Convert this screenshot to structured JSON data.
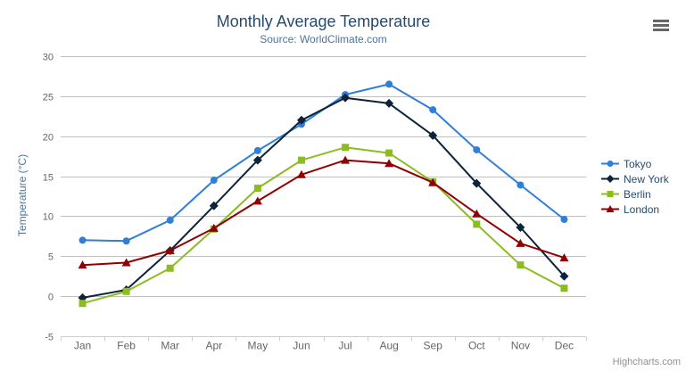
{
  "chart": {
    "credits_label": "Highcharts.com",
    "context_menu_icon": "hamburger-icon"
  },
  "chart_data": {
    "type": "line",
    "title": "Monthly Average Temperature",
    "subtitle": "Source: WorldClimate.com",
    "xlabel": "",
    "ylabel": "Temperature (°C)",
    "ylim": [
      -5,
      30
    ],
    "yticks": [
      30,
      25,
      20,
      15,
      10,
      5,
      0,
      -5
    ],
    "grid": "horizontal",
    "legend_position": "right",
    "background_color": "#ffffff",
    "gridline_color": "#c0c0c0",
    "axis_line_color": "#c0d0e0",
    "categories": [
      "Jan",
      "Feb",
      "Mar",
      "Apr",
      "May",
      "Jun",
      "Jul",
      "Aug",
      "Sep",
      "Oct",
      "Nov",
      "Dec"
    ],
    "series": [
      {
        "name": "Tokyo",
        "color": "#2f7ed8",
        "marker": "circle",
        "values": [
          7.0,
          6.9,
          9.5,
          14.5,
          18.2,
          21.5,
          25.2,
          26.5,
          23.3,
          18.3,
          13.9,
          9.6
        ]
      },
      {
        "name": "New York",
        "color": "#0d233a",
        "marker": "diamond",
        "values": [
          -0.2,
          0.8,
          5.7,
          11.3,
          17.0,
          22.0,
          24.8,
          24.1,
          20.1,
          14.1,
          8.6,
          2.5
        ]
      },
      {
        "name": "Berlin",
        "color": "#8bbc21",
        "marker": "square",
        "values": [
          -0.9,
          0.6,
          3.5,
          8.4,
          13.5,
          17.0,
          18.6,
          17.9,
          14.3,
          9.0,
          3.9,
          1.0
        ]
      },
      {
        "name": "London",
        "color": "#910000",
        "marker": "triangle",
        "values": [
          3.9,
          4.2,
          5.7,
          8.5,
          11.9,
          15.2,
          17.0,
          16.6,
          14.2,
          10.3,
          6.6,
          4.8
        ]
      }
    ]
  }
}
